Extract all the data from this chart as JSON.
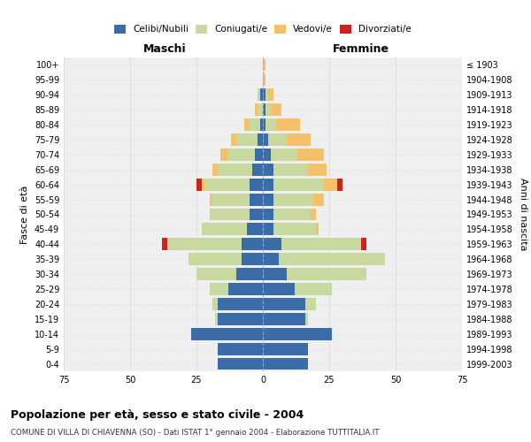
{
  "age_groups": [
    "0-4",
    "5-9",
    "10-14",
    "15-19",
    "20-24",
    "25-29",
    "30-34",
    "35-39",
    "40-44",
    "45-49",
    "50-54",
    "55-59",
    "60-64",
    "65-69",
    "70-74",
    "75-79",
    "80-84",
    "85-89",
    "90-94",
    "95-99",
    "100+"
  ],
  "birth_years": [
    "1999-2003",
    "1994-1998",
    "1989-1993",
    "1984-1988",
    "1979-1983",
    "1974-1978",
    "1969-1973",
    "1964-1968",
    "1959-1963",
    "1954-1958",
    "1949-1953",
    "1944-1948",
    "1939-1943",
    "1934-1938",
    "1929-1933",
    "1924-1928",
    "1919-1923",
    "1914-1918",
    "1909-1913",
    "1904-1908",
    "≤ 1903"
  ],
  "male_celibi": [
    17,
    17,
    27,
    17,
    17,
    13,
    10,
    8,
    8,
    6,
    5,
    5,
    5,
    4,
    3,
    2,
    1,
    0,
    1,
    0,
    0
  ],
  "male_coniugati": [
    0,
    0,
    0,
    1,
    2,
    7,
    15,
    20,
    28,
    17,
    15,
    14,
    17,
    13,
    10,
    8,
    4,
    2,
    1,
    0,
    0
  ],
  "male_vedovi": [
    0,
    0,
    0,
    0,
    0,
    0,
    0,
    0,
    0,
    0,
    0,
    1,
    1,
    2,
    3,
    2,
    2,
    1,
    0,
    0,
    0
  ],
  "male_divorziati": [
    0,
    0,
    0,
    0,
    0,
    0,
    0,
    0,
    2,
    0,
    0,
    0,
    2,
    0,
    0,
    0,
    0,
    0,
    0,
    0,
    0
  ],
  "female_celibi": [
    17,
    17,
    26,
    16,
    16,
    12,
    9,
    6,
    7,
    4,
    4,
    4,
    4,
    4,
    3,
    2,
    1,
    1,
    1,
    0,
    0
  ],
  "female_coniugati": [
    0,
    0,
    0,
    1,
    4,
    14,
    30,
    40,
    30,
    16,
    14,
    15,
    19,
    13,
    10,
    7,
    4,
    2,
    1,
    0,
    0
  ],
  "female_vedovi": [
    0,
    0,
    0,
    0,
    0,
    0,
    0,
    0,
    0,
    1,
    2,
    4,
    5,
    7,
    10,
    9,
    9,
    4,
    2,
    1,
    1
  ],
  "female_divorziati": [
    0,
    0,
    0,
    0,
    0,
    0,
    0,
    0,
    2,
    0,
    0,
    0,
    2,
    0,
    0,
    0,
    0,
    0,
    0,
    0,
    0
  ],
  "color_celibi": "#3a6ca8",
  "color_coniugati": "#c8d9a0",
  "color_vedovi": "#f5c06a",
  "color_divorziati": "#cc2222",
  "title": "Popolazione per età, sesso e stato civile - 2004",
  "subtitle": "COMUNE DI VILLA DI CHIAVENNA (SO) - Dati ISTAT 1° gennaio 2004 - Elaborazione TUTTITALIA.IT",
  "xlabel_left": "Maschi",
  "xlabel_right": "Femmine",
  "ylabel_left": "Fasce di età",
  "ylabel_right": "Anni di nascita",
  "xlim": 75,
  "bg_color": "#ffffff",
  "plot_bg_color": "#efefef",
  "grid_color": "#cccccc"
}
